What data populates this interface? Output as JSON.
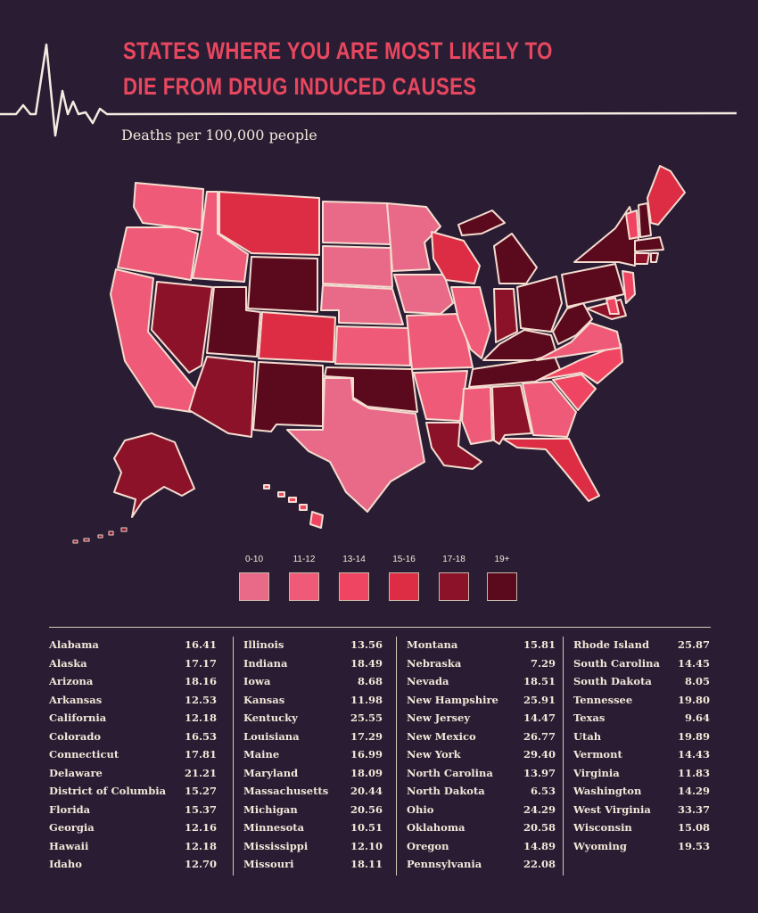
{
  "title_line1": "STATES WHERE YOU ARE MOST LIKELY TO",
  "title_line2": "DIE FROM DRUG INDUCED CAUSES",
  "subtitle": "Deaths per 100,000 people",
  "legend": [
    {
      "label": "0-10",
      "color": "#e86a88"
    },
    {
      "label": "11-12",
      "color": "#ef5a78"
    },
    {
      "label": "13-14",
      "color": "#f04562"
    },
    {
      "label": "15-16",
      "color": "#dd2d45"
    },
    {
      "label": "17-18",
      "color": "#8c1229"
    },
    {
      "label": "19+",
      "color": "#5a0a1c"
    }
  ],
  "states": [
    [
      {
        "name": "Alabama",
        "value": "16.41"
      },
      {
        "name": "Alaska",
        "value": "17.17"
      },
      {
        "name": "Arizona",
        "value": "18.16"
      },
      {
        "name": "Arkansas",
        "value": "12.53"
      },
      {
        "name": "California",
        "value": "12.18"
      },
      {
        "name": "Colorado",
        "value": "16.53"
      },
      {
        "name": "Connecticut",
        "value": "17.81"
      },
      {
        "name": "Delaware",
        "value": "21.21"
      },
      {
        "name": "District of Columbia",
        "value": "15.27"
      },
      {
        "name": "Florida",
        "value": "15.37"
      },
      {
        "name": "Georgia",
        "value": "12.16"
      },
      {
        "name": "Hawaii",
        "value": "12.18"
      },
      {
        "name": "Idaho",
        "value": "12.70"
      }
    ],
    [
      {
        "name": "Illinois",
        "value": "13.56"
      },
      {
        "name": "Indiana",
        "value": "18.49"
      },
      {
        "name": "Iowa",
        "value": "8.68"
      },
      {
        "name": "Kansas",
        "value": "11.98"
      },
      {
        "name": "Kentucky",
        "value": "25.55"
      },
      {
        "name": "Louisiana",
        "value": "17.29"
      },
      {
        "name": "Maine",
        "value": "16.99"
      },
      {
        "name": "Maryland",
        "value": "18.09"
      },
      {
        "name": "Massachusetts",
        "value": "20.44"
      },
      {
        "name": "Michigan",
        "value": "20.56"
      },
      {
        "name": "Minnesota",
        "value": "10.51"
      },
      {
        "name": "Mississippi",
        "value": "12.10"
      },
      {
        "name": "Missouri",
        "value": "18.11"
      }
    ],
    [
      {
        "name": "Montana",
        "value": "15.81"
      },
      {
        "name": "Nebraska",
        "value": "7.29"
      },
      {
        "name": "Nevada",
        "value": "18.51"
      },
      {
        "name": "New Hampshire",
        "value": "25.91"
      },
      {
        "name": "New Jersey",
        "value": "14.47"
      },
      {
        "name": "New Mexico",
        "value": "26.77"
      },
      {
        "name": "New York",
        "value": "29.40"
      },
      {
        "name": "North Carolina",
        "value": "13.97"
      },
      {
        "name": "North Dakota",
        "value": "6.53"
      },
      {
        "name": "Ohio",
        "value": "24.29"
      },
      {
        "name": "Oklahoma",
        "value": "20.58"
      },
      {
        "name": "Oregon",
        "value": "14.89"
      },
      {
        "name": "Pennsylvania",
        "value": "22.08"
      }
    ],
    [
      {
        "name": "Rhode Island",
        "value": "25.87"
      },
      {
        "name": "South Carolina",
        "value": "14.45"
      },
      {
        "name": "South Dakota",
        "value": "8.05"
      },
      {
        "name": "Tennessee",
        "value": "19.80"
      },
      {
        "name": "Texas",
        "value": "9.64"
      },
      {
        "name": "Utah",
        "value": "19.89"
      },
      {
        "name": "Vermont",
        "value": "14.43"
      },
      {
        "name": "Virginia",
        "value": "11.83"
      },
      {
        "name": "Washington",
        "value": "14.29"
      },
      {
        "name": "West Virginia",
        "value": "33.37"
      },
      {
        "name": "Wisconsin",
        "value": "15.08"
      },
      {
        "name": "Wyoming",
        "value": "19.53"
      }
    ]
  ]
}
